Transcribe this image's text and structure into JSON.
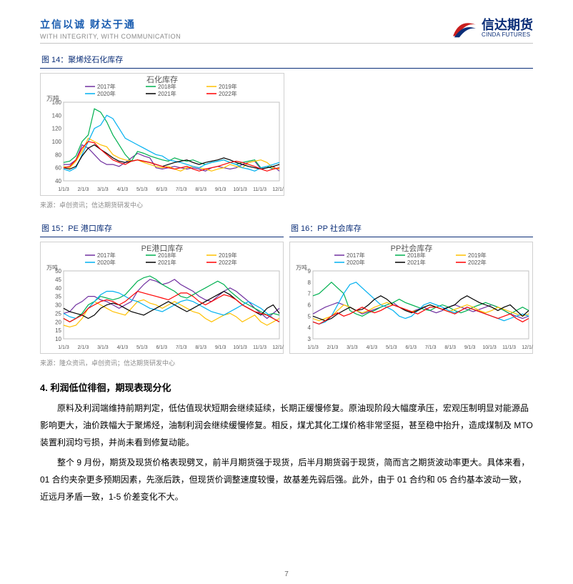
{
  "header": {
    "tagline_cn": "立信以诚 财达于通",
    "tagline_en": "WITH INTEGRITY, WITH COMMUNICATION",
    "brand_cn": "信达期货",
    "brand_en": "CINDA FUTURES",
    "brand_color": "#0b2e78",
    "tagline_color": "#1a5db0",
    "swirl_red": "#c81e1e",
    "swirl_blue": "#0b2e78"
  },
  "fig14": {
    "label": "图 14：聚烯烃石化库存",
    "source": "来源：卓创资讯；信达期货研发中心",
    "chart": {
      "title": "石化库存",
      "ylabel": "万吨",
      "ylim": [
        40,
        160
      ],
      "yticks": [
        40,
        60,
        80,
        100,
        120,
        140,
        160
      ],
      "xticks": [
        "1/1/3",
        "2/1/3",
        "3/1/3",
        "4/1/3",
        "5/1/3",
        "6/1/3",
        "7/1/3",
        "8/1/3",
        "9/1/3",
        "10/1/3",
        "11/1/3",
        "12/1/3"
      ],
      "border_color": "#c0c0c0",
      "grid_color": "#e5e5e5",
      "background_color": "#ffffff",
      "title_fontsize": 11,
      "label_fontsize": 9,
      "legend_pos": "top-center",
      "series": {
        "y2017": {
          "label": "2017年",
          "color": "#7030a0",
          "data": [
            65,
            65,
            72,
            95,
            90,
            80,
            70,
            65,
            65,
            62,
            68,
            75,
            82,
            78,
            75,
            60,
            58,
            60,
            62,
            60,
            58,
            60,
            58,
            55,
            60,
            62,
            60,
            58,
            60,
            65,
            68,
            70,
            58,
            60,
            62,
            55
          ]
        },
        "y2018": {
          "label": "2018年",
          "color": "#00b050",
          "data": [
            68,
            70,
            78,
            100,
            110,
            150,
            145,
            130,
            110,
            95,
            80,
            70,
            85,
            82,
            78,
            75,
            72,
            70,
            75,
            72,
            70,
            72,
            68,
            65,
            68,
            70,
            72,
            68,
            65,
            68,
            70,
            72,
            60,
            62,
            58,
            60
          ]
        },
        "y2019": {
          "label": "2019年",
          "color": "#ffc000",
          "data": [
            62,
            60,
            70,
            85,
            105,
            100,
            95,
            92,
            80,
            75,
            72,
            70,
            72,
            68,
            65,
            62,
            60,
            62,
            58,
            55,
            60,
            62,
            60,
            58,
            55,
            58,
            60,
            65,
            62,
            60,
            68,
            70,
            72,
            68,
            60,
            58
          ]
        },
        "y2020": {
          "label": "2020年",
          "color": "#00b0f0",
          "data": [
            58,
            55,
            60,
            80,
            100,
            120,
            125,
            140,
            135,
            120,
            105,
            100,
            95,
            90,
            85,
            80,
            78,
            72,
            70,
            68,
            65,
            62,
            60,
            65,
            68,
            70,
            72,
            68,
            65,
            60,
            58,
            55,
            60,
            62,
            65,
            68
          ]
        },
        "y2021": {
          "label": "2021年",
          "color": "#000000",
          "data": [
            60,
            58,
            62,
            78,
            90,
            95,
            88,
            82,
            75,
            70,
            68,
            70,
            72,
            70,
            68,
            65,
            62,
            65,
            68,
            70,
            72,
            68,
            65,
            68,
            70,
            72,
            75,
            72,
            68,
            65,
            62,
            60,
            58,
            60,
            62,
            65
          ]
        },
        "y2022": {
          "label": "2022年",
          "color": "#ff0000",
          "data": [
            60,
            62,
            72,
            90,
            100,
            98,
            88,
            80,
            72,
            68,
            65,
            70,
            72,
            70,
            68,
            65,
            62,
            60,
            58,
            60,
            62,
            58,
            55,
            58,
            60,
            62,
            65,
            68,
            70,
            68,
            65,
            62,
            58,
            55,
            58,
            60
          ]
        }
      },
      "line_width": 1.2
    }
  },
  "fig15": {
    "label": "图 15：PE 港口库存",
    "source": "来源：隆众资讯，卓创资讯；信达期货研发中心",
    "chart": {
      "title": "PE港口库存",
      "ylabel": "万吨",
      "ylim": [
        10,
        50
      ],
      "yticks": [
        10,
        15,
        20,
        25,
        30,
        35,
        40,
        45,
        50
      ],
      "xticks": [
        "1/1/3",
        "2/1/3",
        "3/1/3",
        "4/1/3",
        "5/1/3",
        "6/1/3",
        "7/1/3",
        "8/1/3",
        "9/1/3",
        "10/1/3",
        "11/1/3",
        "12/1/3"
      ],
      "border_color": "#c0c0c0",
      "background_color": "#ffffff",
      "title_fontsize": 11,
      "label_fontsize": 8,
      "legend_pos": "top-center",
      "series": {
        "y2017": {
          "label": "2017年",
          "color": "#7030a0",
          "data": [
            25,
            26,
            30,
            32,
            35,
            35,
            33,
            32,
            30,
            28,
            30,
            32,
            38,
            42,
            45,
            44,
            42,
            43,
            45,
            42,
            40,
            38,
            35,
            33,
            32,
            35,
            38,
            40,
            38,
            35,
            32,
            28,
            25,
            22,
            25,
            28
          ]
        },
        "y2018": {
          "label": "2018年",
          "color": "#00b050",
          "data": [
            22,
            20,
            22,
            25,
            30,
            32,
            35,
            34,
            33,
            34,
            36,
            40,
            44,
            46,
            47,
            45,
            42,
            40,
            38,
            35,
            34,
            36,
            38,
            40,
            42,
            44,
            42,
            38,
            35,
            32,
            30,
            28,
            26,
            24,
            25,
            24
          ]
        },
        "y2019": {
          "label": "2019年",
          "color": "#ffc000",
          "data": [
            18,
            17,
            18,
            22,
            28,
            32,
            30,
            28,
            26,
            25,
            24,
            28,
            32,
            33,
            31,
            30,
            28,
            30,
            32,
            30,
            28,
            26,
            25,
            22,
            20,
            22,
            24,
            25,
            23,
            20,
            22,
            24,
            20,
            18,
            20,
            22
          ]
        },
        "y2020": {
          "label": "2020年",
          "color": "#00b0f0",
          "data": [
            25,
            23,
            22,
            24,
            28,
            32,
            36,
            38,
            38,
            37,
            35,
            33,
            32,
            30,
            28,
            27,
            26,
            28,
            30,
            32,
            33,
            32,
            30,
            28,
            26,
            25,
            24,
            26,
            28,
            30,
            32,
            30,
            28,
            25,
            22,
            20
          ]
        },
        "y2021": {
          "label": "2021年",
          "color": "#000000",
          "data": [
            28,
            26,
            25,
            24,
            22,
            24,
            28,
            30,
            31,
            30,
            28,
            26,
            25,
            24,
            26,
            28,
            30,
            32,
            30,
            28,
            26,
            28,
            30,
            32,
            34,
            36,
            38,
            36,
            33,
            30,
            28,
            26,
            24,
            28,
            30,
            25
          ]
        },
        "y2022": {
          "label": "2022年",
          "color": "#ff0000",
          "data": [
            22,
            20,
            22,
            24,
            28,
            30,
            32,
            33,
            32,
            30,
            32,
            35,
            38,
            37,
            36,
            35,
            34,
            33,
            35,
            37,
            37,
            35,
            32,
            30,
            32,
            34,
            36,
            35,
            33,
            30,
            28,
            26,
            25,
            24,
            22,
            20
          ]
        }
      },
      "line_width": 1.2
    }
  },
  "fig16": {
    "label": "图 16：PP 社会库存",
    "chart": {
      "title": "PP社会库存",
      "ylabel": "万吨",
      "ylim": [
        3,
        9
      ],
      "yticks": [
        3,
        4,
        5,
        6,
        7,
        8,
        9
      ],
      "xticks": [
        "1/1/3",
        "2/1/3",
        "3/1/3",
        "4/1/3",
        "5/1/3",
        "6/1/3",
        "7/1/3",
        "8/1/3",
        "9/1/3",
        "10/1/3",
        "11/1/3",
        "12/1/3"
      ],
      "border_color": "#c0c0c0",
      "background_color": "#ffffff",
      "title_fontsize": 11,
      "label_fontsize": 8,
      "legend_pos": "top-center",
      "series": {
        "y2017": {
          "label": "2017年",
          "color": "#7030a0",
          "data": [
            5.2,
            5.5,
            5.8,
            6.0,
            6.2,
            6.0,
            5.8,
            5.5,
            5.2,
            5.4,
            5.6,
            5.8,
            6.0,
            6.2,
            5.8,
            5.6,
            5.4,
            5.6,
            5.8,
            5.5,
            5.3,
            5.5,
            5.8,
            6.0,
            5.8,
            5.6,
            5.4,
            5.6,
            5.8,
            6.0,
            5.8,
            5.5,
            5.2,
            5.0,
            4.8,
            5.0
          ]
        },
        "y2018": {
          "label": "2018年",
          "color": "#00b050",
          "data": [
            6.8,
            7.0,
            7.5,
            8.0,
            7.5,
            7.0,
            5.5,
            5.2,
            5.0,
            5.3,
            5.5,
            5.8,
            6.0,
            6.2,
            6.5,
            6.2,
            6.0,
            5.8,
            5.6,
            5.5,
            5.8,
            6.0,
            5.8,
            5.5,
            5.3,
            5.5,
            5.8,
            6.0,
            6.2,
            6.0,
            5.8,
            5.5,
            5.2,
            5.5,
            5.8,
            5.5
          ]
        },
        "y2019": {
          "label": "2019年",
          "color": "#ffc000",
          "data": [
            4.8,
            4.6,
            4.8,
            5.0,
            5.5,
            6.0,
            5.8,
            5.5,
            5.3,
            5.5,
            5.8,
            6.0,
            6.2,
            6.0,
            5.8,
            5.6,
            5.4,
            5.5,
            5.8,
            6.0,
            5.8,
            5.6,
            5.4,
            5.6,
            5.8,
            6.0,
            5.8,
            5.5,
            5.3,
            5.5,
            5.8,
            5.6,
            5.4,
            5.2,
            5.0,
            5.2
          ]
        },
        "y2020": {
          "label": "2020年",
          "color": "#00b0f0",
          "data": [
            4.5,
            4.3,
            4.5,
            5.0,
            6.0,
            7.0,
            7.8,
            8.0,
            7.5,
            7.0,
            6.5,
            6.0,
            5.8,
            5.5,
            5.0,
            4.8,
            5.0,
            5.5,
            6.0,
            6.2,
            6.0,
            5.8,
            5.5,
            5.3,
            5.5,
            5.8,
            5.6,
            5.4,
            5.2,
            5.0,
            4.8,
            4.6,
            4.8,
            5.0,
            5.2,
            5.0
          ]
        },
        "y2021": {
          "label": "2021年",
          "color": "#000000",
          "data": [
            5.0,
            4.8,
            4.6,
            4.8,
            5.2,
            5.5,
            5.8,
            5.5,
            5.6,
            6.0,
            6.5,
            6.8,
            6.5,
            6.0,
            5.8,
            5.5,
            5.3,
            5.5,
            5.8,
            6.0,
            5.8,
            5.6,
            5.8,
            6.0,
            6.5,
            6.8,
            6.5,
            6.2,
            6.0,
            5.8,
            5.5,
            5.8,
            6.0,
            5.5,
            5.0,
            5.5
          ]
        },
        "y2022": {
          "label": "2022年",
          "color": "#ff0000",
          "data": [
            4.5,
            4.3,
            4.6,
            5.0,
            5.3,
            5.0,
            5.2,
            5.5,
            5.8,
            5.5,
            5.3,
            5.5,
            5.8,
            6.0,
            5.8,
            5.6,
            5.4,
            5.2,
            5.5,
            5.8,
            5.8,
            5.6,
            5.4,
            5.2,
            5.5,
            5.8,
            5.6,
            5.4,
            5.2,
            5.0,
            4.8,
            5.0,
            5.2,
            4.8,
            4.5,
            4.8
          ]
        }
      },
      "line_width": 1.2
    }
  },
  "section": {
    "title": "4. 利润低位徘徊，期现表现分化",
    "p1": "原料及利润端维持前期判定，低估值现状短期会继续延续，长期正缓慢修复。原油现阶段大幅度承压，宏观压制明显对能源品影响更大，油价跌幅大于聚烯烃，油制利润会继续缓慢修复。相反，煤尤其化工煤价格非常坚挺，甚至稳中抬升，造成煤制及 MTO 装置利润均亏损，并尚未看到修复动能。",
    "p2": "整个 9 月份，期货及现货价格表现劈叉，前半月期货强于现货，后半月期货弱于现货，简而言之期货波动率更大。具体来看，01 合约夹杂更多预期因素，先涨后跌，但现货价调整速度较慢，故基差先弱后强。此外，由于 01 合约和 05 合约基本波动一致，近远月矛盾一致，1-5 价差变化不大。"
  },
  "page_num": "7"
}
